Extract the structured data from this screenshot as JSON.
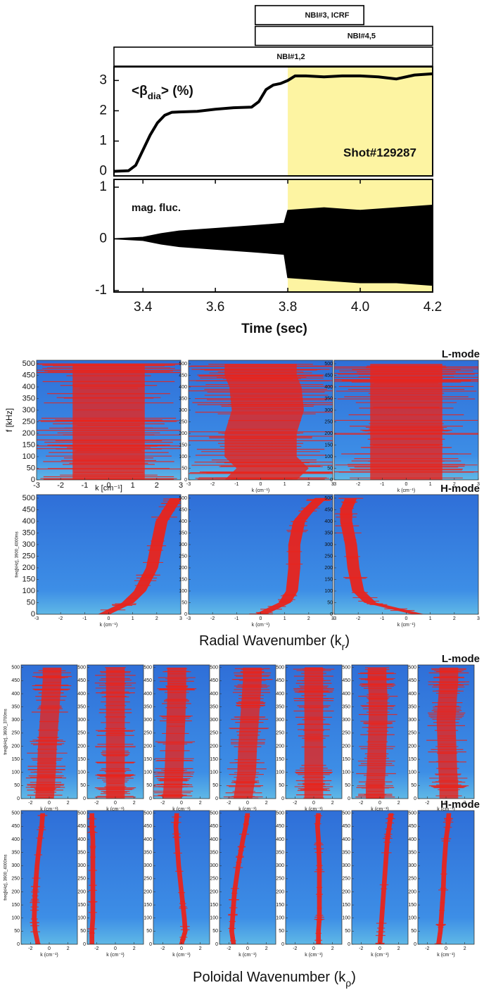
{
  "chart_data": [
    {
      "type": "line",
      "color": "#000000",
      "x": [
        3.32,
        3.36,
        3.38,
        3.4,
        3.42,
        3.44,
        3.46,
        3.48,
        3.5,
        3.55,
        3.6,
        3.65,
        3.7,
        3.72,
        3.74,
        3.76,
        3.78,
        3.8,
        3.82,
        3.85,
        3.9,
        3.95,
        4.0,
        4.05,
        4.1,
        4.15,
        4.2
      ],
      "values": [
        0,
        0.02,
        0.2,
        0.7,
        1.2,
        1.6,
        1.85,
        1.95,
        1.96,
        1.98,
        2.05,
        2.1,
        2.12,
        2.3,
        2.7,
        2.85,
        2.9,
        3.0,
        3.15,
        3.15,
        3.12,
        3.15,
        3.15,
        3.12,
        3.05,
        3.18,
        3.22
      ],
      "xlim": [
        3.32,
        4.2
      ],
      "ylim": [
        -0.15,
        3.45
      ],
      "yticks": [
        0,
        1,
        2,
        3
      ],
      "ylabel": [
        "<β",
        "dia",
        "> (%)"
      ],
      "annotation": "Shot#129287",
      "shade": [
        3.8,
        4.2
      ],
      "shade_color": "#fdf4a2",
      "heating": [
        {
          "label": "NBI#3, ICRF",
          "start": 3.71,
          "end": 4.01
        },
        {
          "label": "NBI#4,5",
          "start": 3.71,
          "end": 4.2
        },
        {
          "label": "NBI#1,2",
          "start": 3.32,
          "end": 4.2
        }
      ]
    },
    {
      "type": "band",
      "color": "#000000",
      "x": [
        3.32,
        3.4,
        3.45,
        3.5,
        3.6,
        3.7,
        3.79,
        3.8,
        3.9,
        4.0,
        4.1,
        4.2
      ],
      "high": [
        0,
        0.03,
        0.1,
        0.15,
        0.2,
        0.25,
        0.3,
        0.55,
        0.6,
        0.55,
        0.6,
        0.65
      ],
      "low": [
        0,
        -0.03,
        -0.1,
        -0.15,
        -0.2,
        -0.25,
        -0.3,
        -0.75,
        -0.8,
        -0.85,
        -0.85,
        -0.9
      ],
      "xlim": [
        3.32,
        4.2
      ],
      "ylim": [
        -1.03,
        1.15
      ],
      "yticks": [
        -1,
        0,
        1
      ],
      "xticks": [
        3.4,
        3.6,
        3.8,
        {
          "value": 4,
          "label": "4.0"
        },
        4.2
      ],
      "xlabel": "Time (sec)",
      "annotation": "mag. fluc.",
      "shade": [
        3.8,
        4.2
      ],
      "shade_color": "#fdf4a2"
    },
    {
      "type": "spectrogram",
      "title": [
        "Radial Wavenumber (",
        "k",
        "r",
        ")"
      ],
      "xlim": [
        -3,
        3
      ],
      "ylim": [
        0,
        515
      ],
      "xticks": [
        -3,
        -2,
        -1,
        0,
        1,
        2,
        3
      ],
      "yticks": [
        0,
        50,
        100,
        150,
        200,
        250,
        300,
        350,
        400,
        450,
        500
      ],
      "panel_xlabel": "k (cm⁻¹)",
      "ridge_f": [
        0,
        50,
        100,
        200,
        300,
        400,
        450,
        500
      ],
      "rows": [
        {
          "label": "L-mode",
          "ylabel": "f [kHz]",
          "xlabel": "k [cm⁻¹]",
          "ridge_width": 3,
          "panels": [
            {
              "k": [
                0,
                0,
                0,
                0,
                0,
                0,
                0,
                0
              ]
            },
            {
              "k": [
                0,
                0.5,
                0,
                0,
                0.3,
                0.2,
                0,
                0
              ]
            },
            {
              "k": [
                0,
                0,
                0,
                0,
                0,
                0,
                0,
                0
              ]
            }
          ]
        },
        {
          "label": "H-mode",
          "ylabel": "freq[kHz], 3900_4000ms",
          "xlabel": "k (cm⁻¹)",
          "ridge_width": 0.5,
          "panels": [
            {
              "k": [
                -0.2,
                0.8,
                1.3,
                1.8,
                2.0,
                2.2,
                2.5,
                2.8
              ]
            },
            {
              "k": [
                0,
                1.0,
                1.3,
                1.4,
                1.4,
                1.6,
                2.0,
                2.5
              ]
            },
            {
              "k": [
                0.5,
                -1.5,
                -2,
                -2.2,
                -2.3,
                -2.5,
                -2.5,
                -2.3
              ]
            }
          ]
        }
      ]
    },
    {
      "type": "spectrogram",
      "title": [
        "Poloidal Wavenumber (",
        "k",
        "ρ",
        ")"
      ],
      "xlim": [
        -3,
        3
      ],
      "ylim": [
        0,
        510
      ],
      "xticks": [
        -2,
        0,
        2
      ],
      "yticks": [
        0,
        50,
        100,
        150,
        200,
        250,
        300,
        350,
        400,
        450,
        500
      ],
      "panel_xlabel": "k (cm⁻¹)",
      "ridge_f": [
        0,
        50,
        100,
        200,
        300,
        400,
        450,
        500
      ],
      "rows": [
        {
          "label": "L-mode",
          "ylabel": "freq[kHz], 3600_3700ms",
          "xlabel": "k (cm⁻¹)",
          "ridge_width": 2,
          "panels": [
            {
              "k": [
                -0.5,
                -0.4,
                -0.3,
                -0.2,
                0,
                0.2,
                0.3,
                0.3
              ]
            },
            {
              "k": [
                0,
                0,
                0,
                0,
                0,
                0,
                0,
                0
              ]
            },
            {
              "k": [
                -1,
                -0.9,
                -0.8,
                -0.7,
                -0.6,
                -0.5,
                -0.5,
                -0.5
              ]
            },
            {
              "k": [
                -0.5,
                -0.3,
                -0.1,
                0,
                0.2,
                0.4,
                0.5,
                0.5
              ]
            },
            {
              "k": [
                0,
                0,
                0,
                0,
                0,
                0,
                0,
                0
              ]
            },
            {
              "k": [
                -0.5,
                -0.5,
                -0.4,
                -0.3,
                -0.2,
                -0.2,
                -0.3,
                -0.3
              ]
            },
            {
              "k": [
                0.3,
                0.3,
                0.2,
                0.1,
                0,
                0.2,
                0.3,
                0.3
              ]
            }
          ]
        },
        {
          "label": "H-mode",
          "ylabel": "freq[kHz], 3900_4000ms",
          "xlabel": "k (cm⁻¹)",
          "ridge_width": 0.5,
          "panels": [
            {
              "k": [
                -1.2,
                -1.5,
                -1.6,
                -1.5,
                -1.3,
                -1.0,
                -0.8,
                -0.7
              ]
            },
            {
              "k": [
                -2.5,
                -2.5,
                -2.4,
                -2.4,
                -2.4,
                -2.4,
                -2.5,
                -2.5
              ]
            },
            {
              "k": [
                0,
                0.4,
                0.3,
                0,
                -0.3,
                -0.5,
                -0.6,
                -0.5
              ]
            },
            {
              "k": [
                -1.5,
                -1.7,
                -1.6,
                -1.4,
                -1,
                -0.5,
                -0.2,
                0
              ]
            },
            {
              "k": [
                0.5,
                0.5,
                0.6,
                0.6,
                0.6,
                0.5,
                0.4,
                0.5
              ]
            },
            {
              "k": [
                0,
                0.1,
                0.2,
                0.4,
                0.6,
                0.8,
                1.0,
                1.2
              ]
            },
            {
              "k": [
                -0.8,
                -0.6,
                -0.5,
                -0.3,
                -0.2,
                0,
                0.2,
                0.3
              ]
            }
          ]
        }
      ]
    }
  ]
}
